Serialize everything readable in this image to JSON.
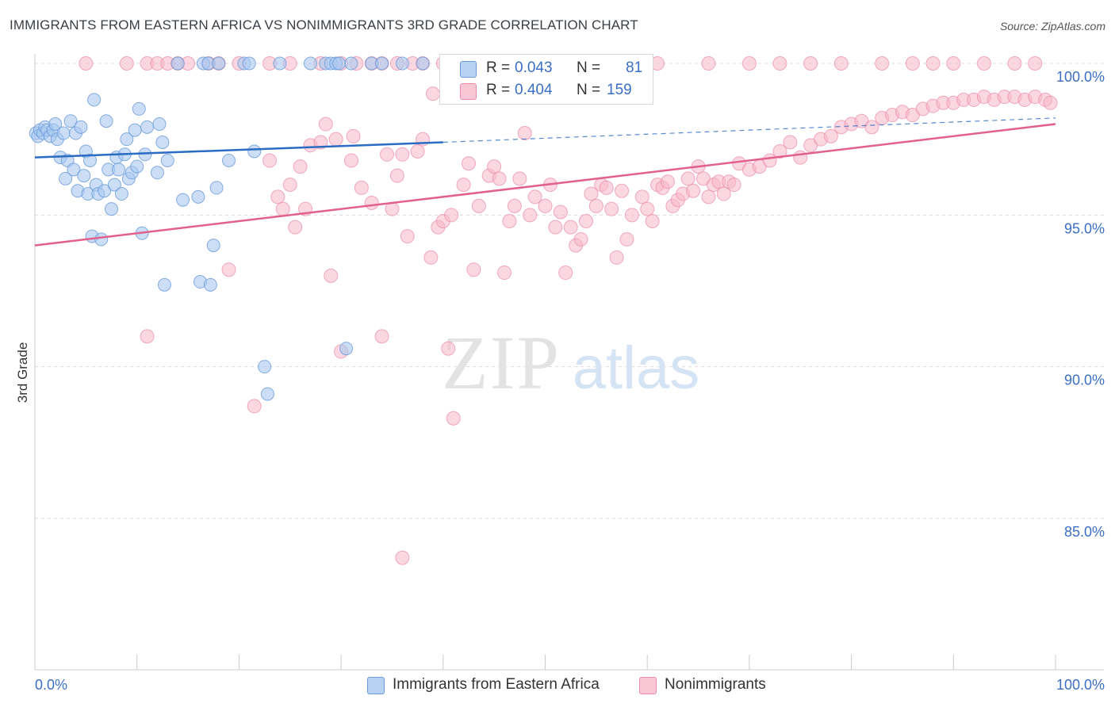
{
  "header": {
    "title": "IMMIGRANTS FROM EASTERN AFRICA VS NONIMMIGRANTS 3RD GRADE CORRELATION CHART",
    "source": "Source: ZipAtlas.com"
  },
  "watermark": {
    "zip": "ZIP",
    "atlas": "atlas"
  },
  "legend_top": [
    {
      "r_label": "R =",
      "r_value": "0.043",
      "n_label": "N =",
      "n_value": "81"
    },
    {
      "r_label": "R =",
      "r_value": "0.404",
      "n_label": "N =",
      "n_value": "159"
    }
  ],
  "legend_bottom": [
    {
      "label": "Immigrants from Eastern Africa"
    },
    {
      "label": "Nonimmigrants"
    }
  ],
  "colors": {
    "blue_fill": "#a8c8f0",
    "blue_stroke": "#6a9ad8",
    "blue_line": "#2a6bc4",
    "pink_fill": "#f7b6ca",
    "pink_stroke": "#ea8aa8",
    "pink_line": "#e2608c",
    "axis_text": "#3a6fc4",
    "grid": "#dddddd"
  },
  "chart_data": {
    "type": "scatter",
    "title": "IMMIGRANTS FROM EASTERN AFRICA VS NONIMMIGRANTS 3RD GRADE CORRELATION CHART",
    "xlabel": "",
    "ylabel": "3rd Grade",
    "xlim": [
      0,
      100
    ],
    "ylim": [
      80.5,
      100.8
    ],
    "x_tick_labels": [
      "0.0%",
      "100.0%"
    ],
    "y_ticks": [
      85,
      90,
      95,
      100
    ],
    "y_tick_labels": [
      "85.0%",
      "90.0%",
      "95.0%",
      "100.0%"
    ],
    "grid": true,
    "legend_position": "top-center",
    "series": [
      {
        "name": "Immigrants from Eastern Africa",
        "color": "#a8c8f0",
        "trend": {
          "x": [
            0,
            40
          ],
          "y": [
            96.9,
            97.4
          ]
        },
        "trend_extension": {
          "x": [
            40,
            100
          ],
          "y": [
            97.4,
            98.2
          ]
        },
        "points": [
          [
            0.1,
            97.7
          ],
          [
            0.3,
            97.6
          ],
          [
            0.5,
            97.8
          ],
          [
            0.8,
            97.7
          ],
          [
            1.0,
            97.9
          ],
          [
            1.2,
            97.8
          ],
          [
            1.5,
            97.6
          ],
          [
            1.8,
            97.8
          ],
          [
            2.0,
            98.0
          ],
          [
            2.2,
            97.5
          ],
          [
            2.5,
            96.9
          ],
          [
            2.8,
            97.7
          ],
          [
            3.0,
            96.2
          ],
          [
            3.2,
            96.8
          ],
          [
            3.5,
            98.1
          ],
          [
            3.8,
            96.5
          ],
          [
            4.0,
            97.7
          ],
          [
            4.2,
            95.8
          ],
          [
            4.5,
            97.9
          ],
          [
            4.8,
            96.3
          ],
          [
            5.0,
            97.1
          ],
          [
            5.2,
            95.7
          ],
          [
            5.4,
            96.8
          ],
          [
            5.6,
            94.3
          ],
          [
            5.8,
            98.8
          ],
          [
            6.0,
            96.0
          ],
          [
            6.2,
            95.7
          ],
          [
            6.5,
            94.2
          ],
          [
            6.8,
            95.8
          ],
          [
            7.0,
            98.1
          ],
          [
            7.2,
            96.5
          ],
          [
            7.5,
            95.2
          ],
          [
            7.8,
            96.0
          ],
          [
            8.0,
            96.9
          ],
          [
            8.2,
            96.5
          ],
          [
            8.5,
            95.7
          ],
          [
            8.8,
            97.0
          ],
          [
            9.0,
            97.5
          ],
          [
            9.2,
            96.2
          ],
          [
            9.5,
            96.4
          ],
          [
            9.8,
            97.8
          ],
          [
            10.0,
            96.6
          ],
          [
            10.2,
            98.5
          ],
          [
            10.5,
            94.4
          ],
          [
            10.8,
            97.0
          ],
          [
            11.0,
            97.9
          ],
          [
            12.0,
            96.4
          ],
          [
            12.2,
            98.0
          ],
          [
            12.5,
            97.4
          ],
          [
            12.7,
            92.7
          ],
          [
            13.0,
            96.8
          ],
          [
            14.0,
            100.0
          ],
          [
            14.5,
            95.5
          ],
          [
            16.0,
            95.6
          ],
          [
            16.2,
            92.8
          ],
          [
            16.5,
            100.0
          ],
          [
            17.0,
            100.0
          ],
          [
            17.2,
            92.7
          ],
          [
            17.5,
            94.0
          ],
          [
            17.8,
            95.9
          ],
          [
            18.0,
            100.0
          ],
          [
            19.0,
            96.8
          ],
          [
            20.5,
            100.0
          ],
          [
            21.0,
            100.0
          ],
          [
            21.5,
            97.1
          ],
          [
            22.5,
            90.0
          ],
          [
            22.8,
            89.1
          ],
          [
            24.0,
            100.0
          ],
          [
            27.0,
            100.0
          ],
          [
            28.5,
            100.0
          ],
          [
            29.0,
            100.0
          ],
          [
            29.5,
            100.0
          ],
          [
            29.8,
            100.0
          ],
          [
            30.5,
            90.6
          ],
          [
            31.0,
            100.0
          ],
          [
            33.0,
            100.0
          ],
          [
            34.0,
            100.0
          ],
          [
            36.0,
            100.0
          ],
          [
            38.0,
            100.0
          ],
          [
            40.5,
            100.0
          ],
          [
            43.0,
            100.0
          ]
        ]
      },
      {
        "name": "Nonimmigrants",
        "color": "#f7b6ca",
        "trend": {
          "x": [
            0,
            100
          ],
          "y": [
            94.0,
            98.0
          ]
        },
        "points": [
          [
            5.0,
            100.0
          ],
          [
            9.0,
            100.0
          ],
          [
            11.0,
            100.0
          ],
          [
            12.0,
            100.0
          ],
          [
            13.0,
            100.0
          ],
          [
            14.0,
            100.0
          ],
          [
            15.0,
            100.0
          ],
          [
            17.0,
            100.0
          ],
          [
            18.0,
            100.0
          ],
          [
            20.0,
            100.0
          ],
          [
            23.0,
            100.0
          ],
          [
            25.0,
            100.0
          ],
          [
            28.0,
            100.0
          ],
          [
            30.0,
            100.0
          ],
          [
            31.5,
            100.0
          ],
          [
            33.0,
            100.0
          ],
          [
            34.0,
            100.0
          ],
          [
            35.5,
            100.0
          ],
          [
            37.0,
            100.0
          ],
          [
            38.0,
            100.0
          ],
          [
            40.0,
            100.0
          ],
          [
            42.0,
            100.0
          ],
          [
            44.0,
            100.0
          ],
          [
            46.0,
            100.0
          ],
          [
            48.0,
            100.0
          ],
          [
            52.0,
            100.0
          ],
          [
            56.0,
            100.0
          ],
          [
            61.0,
            100.0
          ],
          [
            66.0,
            100.0
          ],
          [
            70.0,
            100.0
          ],
          [
            73.0,
            100.0
          ],
          [
            76.0,
            100.0
          ],
          [
            79.0,
            100.0
          ],
          [
            83.0,
            100.0
          ],
          [
            86.0,
            100.0
          ],
          [
            88.0,
            100.0
          ],
          [
            90.0,
            100.0
          ],
          [
            93.0,
            100.0
          ],
          [
            96.0,
            100.0
          ],
          [
            98.0,
            100.0
          ],
          [
            11.0,
            91.0
          ],
          [
            19.0,
            93.2
          ],
          [
            21.5,
            88.7
          ],
          [
            23.0,
            96.8
          ],
          [
            23.8,
            95.6
          ],
          [
            24.3,
            95.2
          ],
          [
            25.0,
            96.0
          ],
          [
            25.5,
            94.6
          ],
          [
            26.0,
            96.6
          ],
          [
            26.5,
            95.2
          ],
          [
            27.0,
            97.3
          ],
          [
            28.0,
            97.4
          ],
          [
            28.5,
            98.0
          ],
          [
            29.0,
            93.0
          ],
          [
            29.5,
            97.5
          ],
          [
            30.0,
            90.5
          ],
          [
            31.0,
            96.8
          ],
          [
            31.2,
            97.6
          ],
          [
            32.0,
            95.9
          ],
          [
            33.0,
            95.4
          ],
          [
            34.0,
            91.0
          ],
          [
            34.5,
            97.0
          ],
          [
            35.0,
            95.2
          ],
          [
            35.5,
            96.3
          ],
          [
            36.0,
            97.0
          ],
          [
            36.5,
            94.3
          ],
          [
            37.5,
            97.1
          ],
          [
            38.0,
            97.5
          ],
          [
            38.8,
            93.6
          ],
          [
            39.0,
            99.0
          ],
          [
            39.5,
            94.6
          ],
          [
            40.0,
            94.8
          ],
          [
            40.5,
            90.6
          ],
          [
            40.8,
            95.0
          ],
          [
            41.0,
            88.3
          ],
          [
            42.0,
            96.0
          ],
          [
            42.5,
            96.7
          ],
          [
            43.0,
            93.2
          ],
          [
            43.5,
            95.3
          ],
          [
            44.5,
            96.3
          ],
          [
            45.0,
            96.6
          ],
          [
            45.5,
            96.2
          ],
          [
            46.0,
            93.1
          ],
          [
            46.5,
            94.8
          ],
          [
            47.0,
            95.3
          ],
          [
            47.5,
            96.2
          ],
          [
            48.0,
            97.7
          ],
          [
            48.5,
            95.0
          ],
          [
            49.0,
            95.6
          ],
          [
            50.0,
            95.3
          ],
          [
            50.5,
            96.0
          ],
          [
            51.0,
            94.6
          ],
          [
            51.5,
            95.1
          ],
          [
            52.0,
            93.1
          ],
          [
            52.5,
            94.6
          ],
          [
            53.0,
            94.0
          ],
          [
            53.5,
            94.2
          ],
          [
            54.0,
            94.8
          ],
          [
            54.5,
            95.7
          ],
          [
            55.0,
            95.3
          ],
          [
            55.5,
            96.0
          ],
          [
            56.0,
            95.9
          ],
          [
            56.5,
            95.2
          ],
          [
            57.0,
            93.6
          ],
          [
            57.5,
            95.8
          ],
          [
            58.0,
            94.2
          ],
          [
            58.5,
            95.0
          ],
          [
            59.5,
            95.6
          ],
          [
            60.0,
            95.2
          ],
          [
            60.5,
            94.8
          ],
          [
            61.0,
            96.0
          ],
          [
            61.5,
            95.9
          ],
          [
            62.0,
            96.1
          ],
          [
            62.5,
            95.3
          ],
          [
            63.0,
            95.5
          ],
          [
            63.5,
            95.7
          ],
          [
            64.0,
            96.2
          ],
          [
            64.5,
            95.8
          ],
          [
            65.0,
            96.6
          ],
          [
            65.5,
            96.2
          ],
          [
            66.0,
            95.6
          ],
          [
            66.5,
            96.0
          ],
          [
            67.0,
            96.1
          ],
          [
            67.5,
            95.7
          ],
          [
            68.0,
            96.1
          ],
          [
            68.5,
            96.0
          ],
          [
            69.0,
            96.7
          ],
          [
            70.0,
            96.5
          ],
          [
            71.0,
            96.6
          ],
          [
            72.0,
            96.8
          ],
          [
            73.0,
            97.1
          ],
          [
            74.0,
            97.4
          ],
          [
            75.0,
            96.9
          ],
          [
            76.0,
            97.3
          ],
          [
            77.0,
            97.5
          ],
          [
            78.0,
            97.6
          ],
          [
            79.0,
            97.9
          ],
          [
            80.0,
            98.0
          ],
          [
            81.0,
            98.1
          ],
          [
            82.0,
            97.9
          ],
          [
            83.0,
            98.2
          ],
          [
            84.0,
            98.3
          ],
          [
            85.0,
            98.4
          ],
          [
            86.0,
            98.3
          ],
          [
            87.0,
            98.5
          ],
          [
            88.0,
            98.6
          ],
          [
            89.0,
            98.7
          ],
          [
            90.0,
            98.7
          ],
          [
            91.0,
            98.8
          ],
          [
            92.0,
            98.8
          ],
          [
            93.0,
            98.9
          ],
          [
            94.0,
            98.8
          ],
          [
            95.0,
            98.9
          ],
          [
            96.0,
            98.9
          ],
          [
            97.0,
            98.8
          ],
          [
            98.0,
            98.9
          ],
          [
            99.0,
            98.8
          ],
          [
            99.5,
            98.7
          ],
          [
            36.0,
            83.7
          ]
        ]
      }
    ]
  }
}
